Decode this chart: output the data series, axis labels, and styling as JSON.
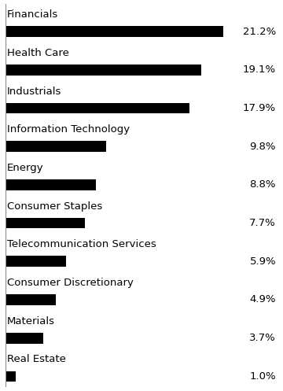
{
  "categories": [
    "Financials",
    "Health Care",
    "Industrials",
    "Information Technology",
    "Energy",
    "Consumer Staples",
    "Telecommunication Services",
    "Consumer Discretionary",
    "Materials",
    "Real Estate"
  ],
  "values": [
    21.2,
    19.1,
    17.9,
    9.8,
    8.8,
    7.7,
    5.9,
    4.9,
    3.7,
    1.0
  ],
  "bar_color": "#000000",
  "background_color": "#ffffff",
  "label_color": "#000000",
  "value_color": "#000000",
  "label_fontsize": 9.5,
  "value_fontsize": 9.5,
  "xlim": [
    0,
    26.5
  ],
  "bar_height": 0.28,
  "left_line_color": "#555555"
}
